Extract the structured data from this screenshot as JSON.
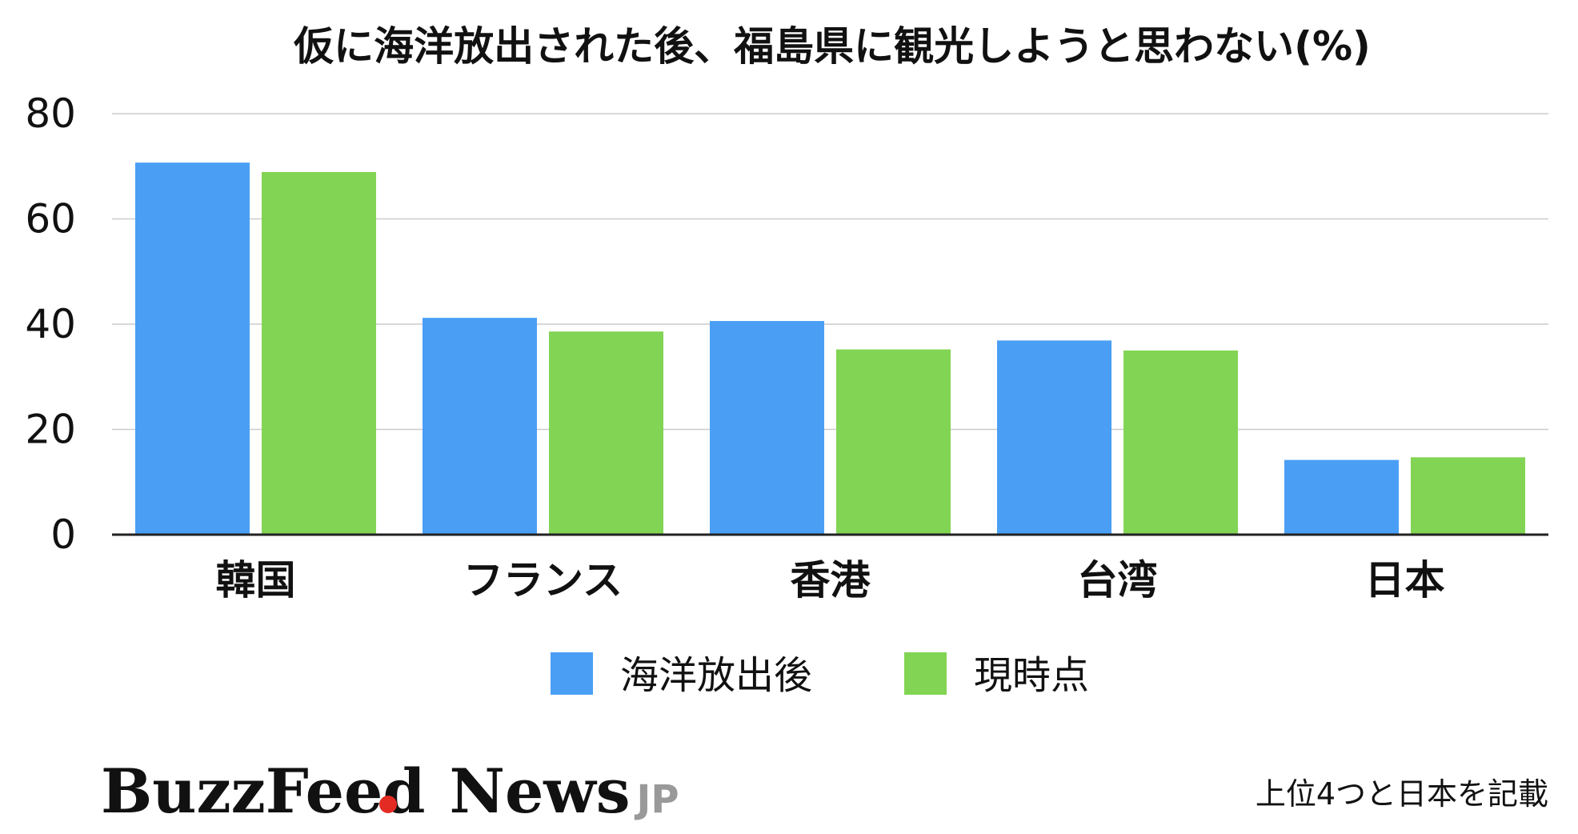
{
  "colors": {
    "series1": "#4a9ff5",
    "series2": "#82d454",
    "grid": "#cccccc",
    "axis": "#222222",
    "logo_dot": "#e32b23",
    "logo_jp": "#999999"
  },
  "chart_data": {
    "type": "bar",
    "title": "仮に海洋放出された後、福島県に観光しようと思わない(%)",
    "categories": [
      "韓国",
      "フランス",
      "香港",
      "台湾",
      "日本"
    ],
    "series": [
      {
        "name": "海洋放出後",
        "values": [
          70.7,
          41.2,
          40.6,
          36.9,
          14.2
        ]
      },
      {
        "name": "現時点",
        "values": [
          68.9,
          38.6,
          35.2,
          35.0,
          14.7
        ]
      }
    ],
    "ylim": [
      0,
      80
    ],
    "yticks": [
      0,
      20,
      40,
      60,
      80
    ],
    "grid": true,
    "legend_position": "bottom"
  },
  "footnote": "上位4つと日本を記載",
  "logo": {
    "main": "BuzzFeed",
    "news": "News",
    "jp": "JP"
  }
}
